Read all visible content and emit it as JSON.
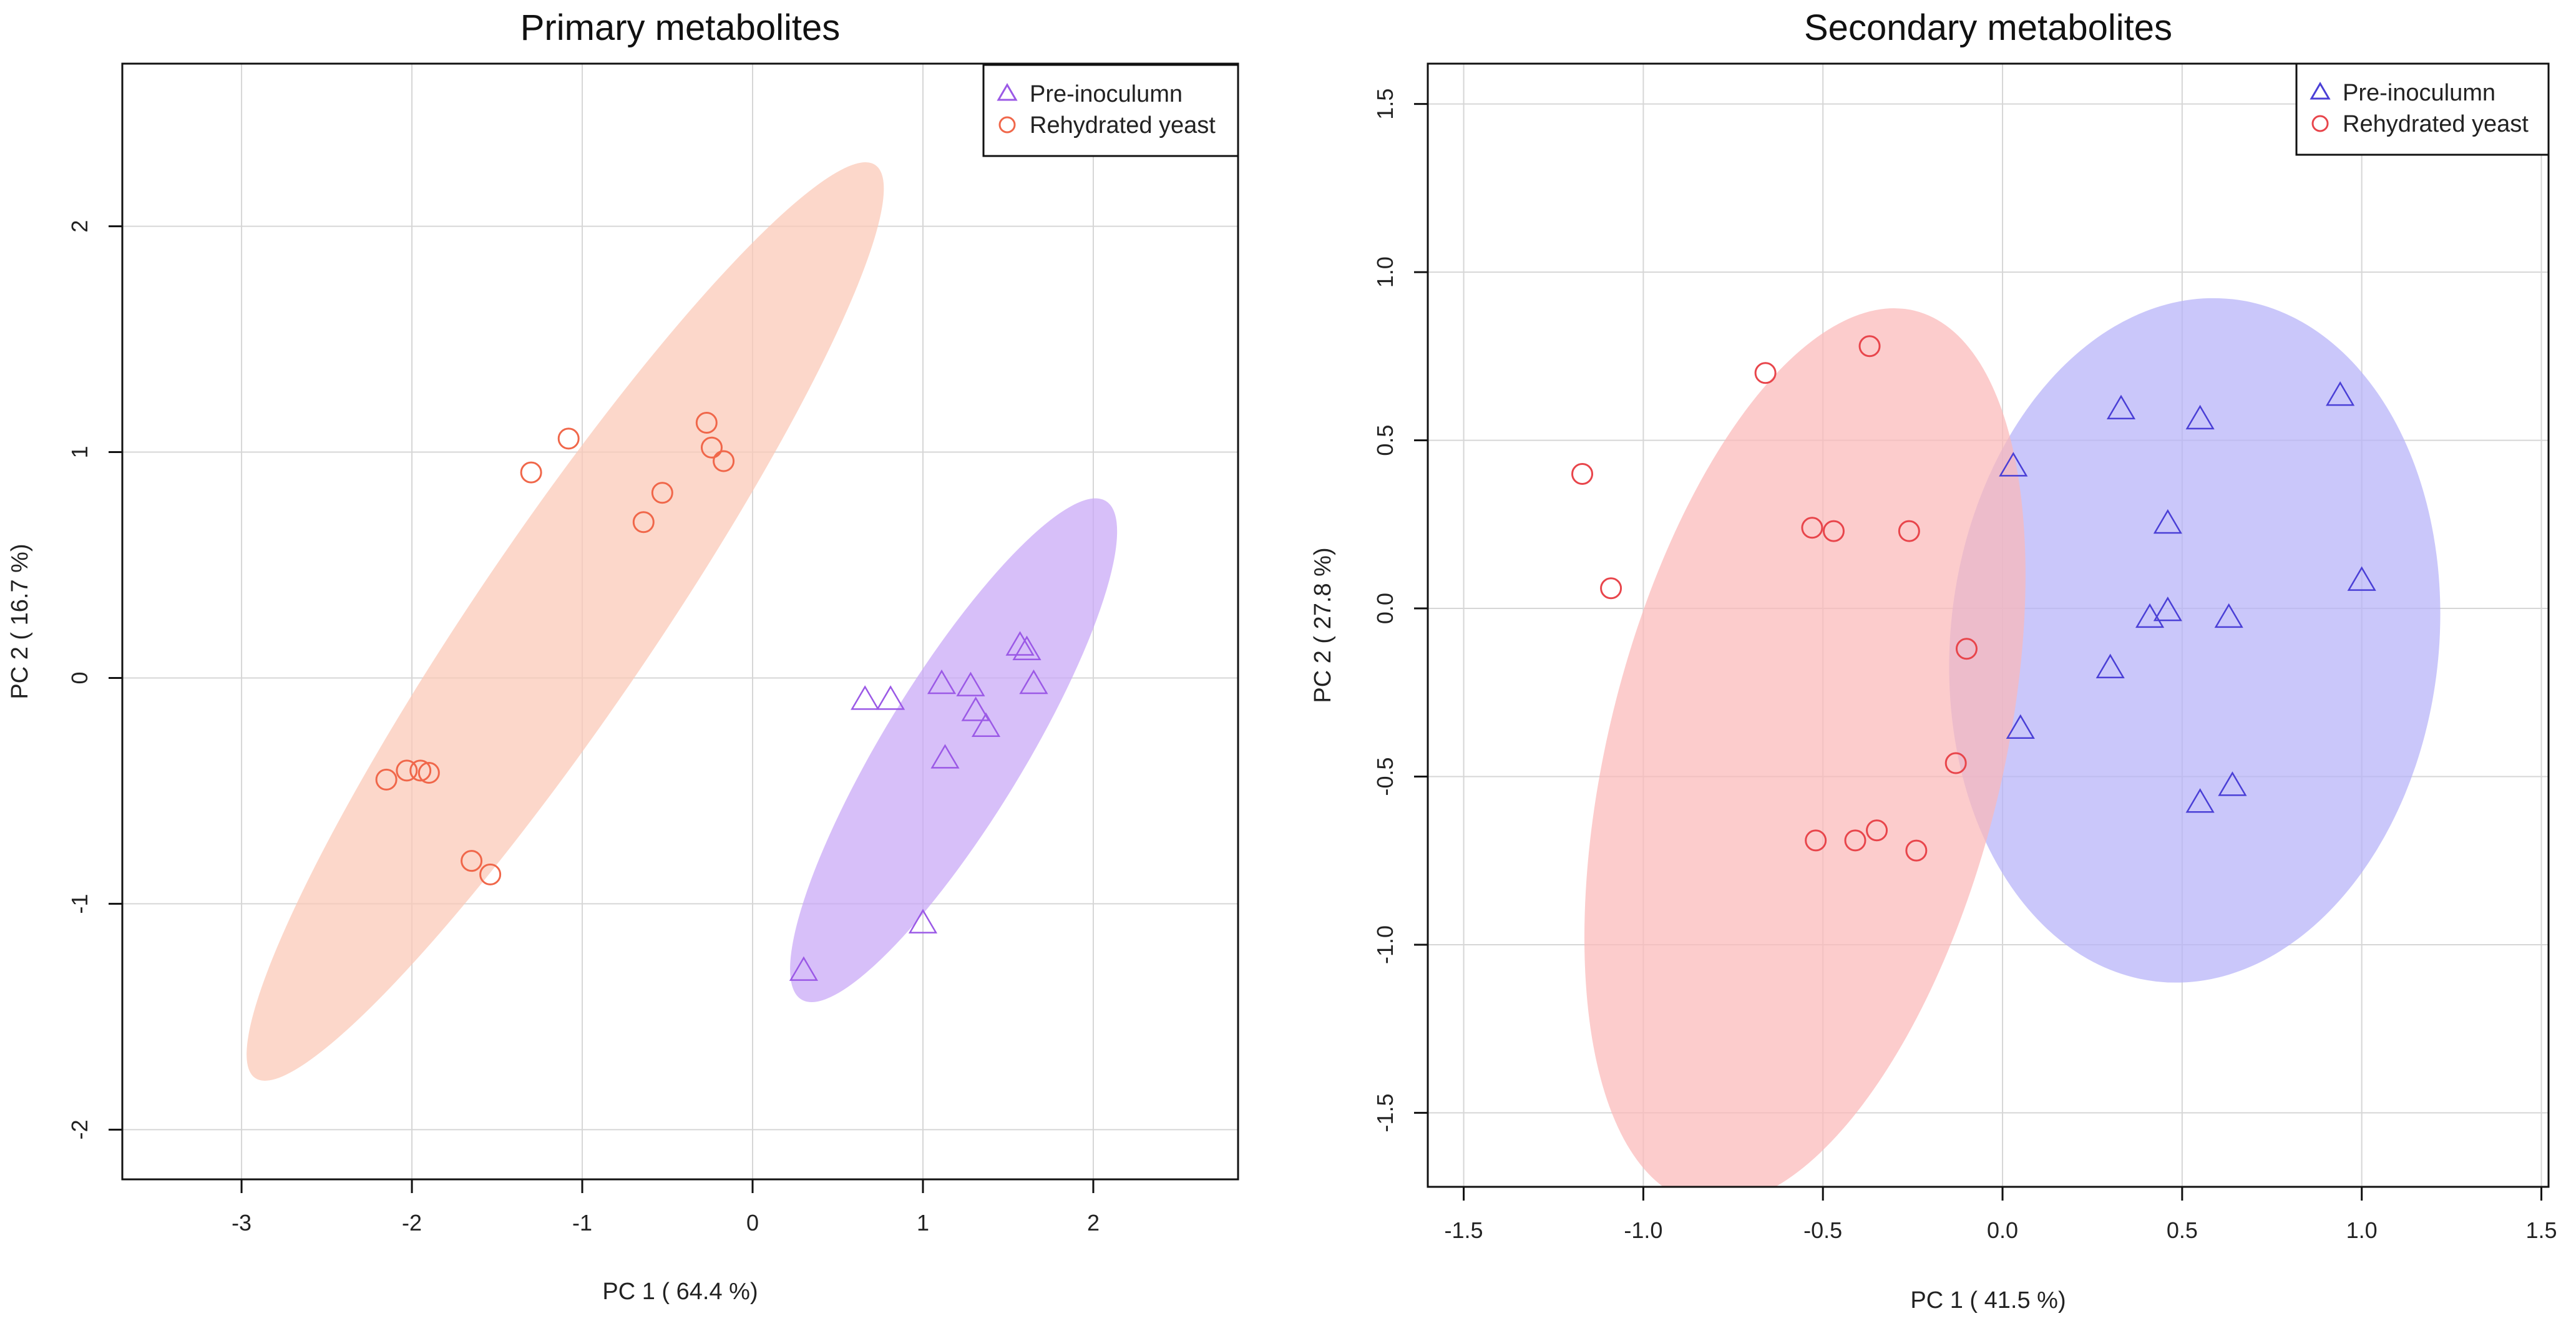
{
  "chart_data": [
    {
      "type": "scatter",
      "title": "Primary metabolites",
      "xlabel": "PC 1 ( 64.4 %)",
      "ylabel": "PC 2 ( 16.7 %)",
      "xlim": [
        -3.7,
        2.85
      ],
      "ylim": [
        -2.22,
        2.72
      ],
      "xticks": [
        -3,
        -2,
        -1,
        0,
        1,
        2
      ],
      "yticks": [
        -2,
        -1,
        0,
        1,
        2
      ],
      "xtick_labels": [
        "-3",
        "-2",
        "-1",
        "0",
        "1",
        "2"
      ],
      "ytick_labels": [
        "-2",
        "-1",
        "0",
        "1",
        "2"
      ],
      "grid": true,
      "legend_position": "top-right",
      "series": [
        {
          "name": "Pre-inoculumn",
          "marker": "triangle",
          "color": "#9B59E6",
          "ellipse_fill": "#C8A6F7",
          "ellipse": {
            "center": [
              1.18,
              -0.32
            ],
            "semi_major": 1.42,
            "semi_minor": 0.36,
            "angle_deg": 51
          },
          "x": [
            0.3,
            1.0,
            0.66,
            0.81,
            1.11,
            1.13,
            1.28,
            1.31,
            1.37,
            1.57,
            1.61,
            1.65
          ],
          "y": [
            -1.3,
            -1.09,
            -0.1,
            -0.1,
            -0.03,
            -0.36,
            -0.04,
            -0.15,
            -0.22,
            0.14,
            0.12,
            -0.03
          ]
        },
        {
          "name": "Rehydrated yeast",
          "marker": "circle",
          "color": "#F0674A",
          "ellipse_fill": "#FBC7B6",
          "ellipse": {
            "center": [
              -1.1,
              0.25
            ],
            "semi_major": 2.72,
            "semi_minor": 0.45,
            "angle_deg": 48
          },
          "x": [
            -2.15,
            -2.03,
            -1.95,
            -1.9,
            -1.65,
            -1.54,
            -1.3,
            -1.08,
            -0.64,
            -0.53,
            -0.27,
            -0.24,
            -0.17
          ],
          "y": [
            -0.45,
            -0.41,
            -0.41,
            -0.42,
            -0.81,
            -0.87,
            0.91,
            1.06,
            0.69,
            0.82,
            1.13,
            1.02,
            0.96
          ]
        }
      ]
    },
    {
      "type": "scatter",
      "title": "Secondary metabolites",
      "xlabel": "PC 1 ( 41.5 %)",
      "ylabel": "PC 2 ( 27.8 %)",
      "xlim": [
        -1.6,
        1.52
      ],
      "ylim": [
        -1.72,
        1.62
      ],
      "xticks": [
        -1.5,
        -1.0,
        -0.5,
        0.0,
        0.5,
        1.0,
        1.5
      ],
      "yticks": [
        -1.5,
        -1.0,
        -0.5,
        0.0,
        0.5,
        1.0,
        1.5
      ],
      "xtick_labels": [
        "-1.5",
        "-1.0",
        "-0.5",
        "0.0",
        "0.5",
        "1.0",
        "1.5"
      ],
      "ytick_labels": [
        "-1.5",
        "-1.0",
        "-0.5",
        "0.0",
        "0.5",
        "1.0",
        "1.5"
      ],
      "grid": true,
      "legend_position": "top-right",
      "series": [
        {
          "name": "Pre-inoculumn",
          "marker": "triangle",
          "color": "#4A3FD6",
          "ellipse_fill": "#B6B1F8",
          "ellipse": {
            "center": [
              0.535,
              -0.095
            ],
            "semi_major": 1.02,
            "semi_minor": 0.68,
            "angle_deg": 84
          },
          "x": [
            0.03,
            0.05,
            0.33,
            0.55,
            0.46,
            0.41,
            0.46,
            0.63,
            0.3,
            0.55,
            0.64,
            0.94,
            1.0
          ],
          "y": [
            0.42,
            -0.36,
            0.59,
            0.56,
            0.25,
            -0.03,
            -0.01,
            -0.03,
            -0.18,
            -0.58,
            -0.53,
            0.63,
            0.08
          ]
        },
        {
          "name": "Rehydrated yeast",
          "marker": "circle",
          "color": "#E8454B",
          "ellipse_fill": "#FBB8B8",
          "ellipse": {
            "center": [
              -0.55,
              -0.44
            ],
            "semi_major": 1.36,
            "semi_minor": 0.55,
            "angle_deg": 77
          },
          "x": [
            -1.17,
            -1.09,
            -0.66,
            -0.37,
            -0.53,
            -0.47,
            -0.26,
            -0.1,
            -0.13,
            -0.52,
            -0.41,
            -0.35,
            -0.24
          ],
          "y": [
            0.4,
            0.06,
            0.7,
            0.78,
            0.24,
            0.23,
            0.23,
            -0.12,
            -0.46,
            -0.69,
            -0.69,
            -0.66,
            -0.72
          ]
        }
      ]
    }
  ]
}
